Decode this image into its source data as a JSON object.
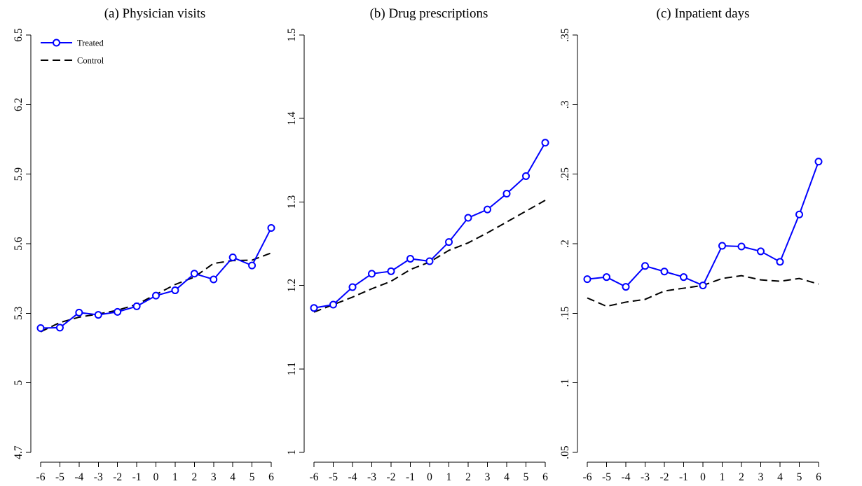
{
  "chart_data": [
    {
      "type": "line",
      "title": "(a) Physician visits",
      "xlabel": "",
      "ylabel": "",
      "x": [
        -6,
        -5,
        -4,
        -3,
        -2,
        -1,
        0,
        1,
        2,
        3,
        4,
        5,
        6
      ],
      "ylim": [
        4.7,
        6.5
      ],
      "yticks": [
        4.7,
        5,
        5.3,
        5.6,
        5.9,
        6.2,
        6.5
      ],
      "ytick_labels": [
        "4.7",
        "5",
        "5.3",
        "5.6",
        "5.9",
        "6.2",
        "6.5"
      ],
      "legend": {
        "show": true,
        "position": "top-left"
      },
      "series": [
        {
          "name": "Treated",
          "style": "solid-circle",
          "color": "#0000FF",
          "values": [
            5.236,
            5.238,
            5.303,
            5.293,
            5.306,
            5.33,
            5.376,
            5.399,
            5.471,
            5.446,
            5.541,
            5.506,
            5.668
          ]
        },
        {
          "name": "Control",
          "style": "dashed",
          "color": "#000000",
          "values": [
            5.22,
            5.26,
            5.283,
            5.297,
            5.313,
            5.338,
            5.381,
            5.424,
            5.456,
            5.515,
            5.527,
            5.529,
            5.56
          ]
        }
      ]
    },
    {
      "type": "line",
      "title": "(b) Drug prescriptions",
      "xlabel": "",
      "ylabel": "",
      "x": [
        -6,
        -5,
        -4,
        -3,
        -2,
        -1,
        0,
        1,
        2,
        3,
        4,
        5,
        6
      ],
      "ylim": [
        1.0,
        1.5
      ],
      "yticks": [
        1.0,
        1.1,
        1.2,
        1.3,
        1.4,
        1.5
      ],
      "ytick_labels": [
        "1",
        "1.1",
        "1.2",
        "1.3",
        "1.4",
        "1.5"
      ],
      "legend": {
        "show": false
      },
      "series": [
        {
          "name": "Treated",
          "style": "solid-circle",
          "color": "#0000FF",
          "values": [
            1.173,
            1.177,
            1.198,
            1.214,
            1.217,
            1.232,
            1.229,
            1.252,
            1.281,
            1.291,
            1.31,
            1.331,
            1.371
          ]
        },
        {
          "name": "Control",
          "style": "dashed",
          "color": "#000000",
          "values": [
            1.168,
            1.177,
            1.186,
            1.196,
            1.205,
            1.219,
            1.228,
            1.242,
            1.251,
            1.263,
            1.276,
            1.289,
            1.302
          ]
        }
      ]
    },
    {
      "type": "line",
      "title": "(c) Inpatient days",
      "xlabel": "",
      "ylabel": "",
      "x": [
        -6,
        -5,
        -4,
        -3,
        -2,
        -1,
        0,
        1,
        2,
        3,
        4,
        5,
        6
      ],
      "ylim": [
        0.05,
        0.35
      ],
      "yticks": [
        0.05,
        0.1,
        0.15,
        0.2,
        0.25,
        0.3,
        0.35
      ],
      "ytick_labels": [
        ".05",
        ".1",
        ".15",
        ".2",
        ".25",
        ".3",
        ".35"
      ],
      "legend": {
        "show": false
      },
      "series": [
        {
          "name": "Treated",
          "style": "solid-circle",
          "color": "#0000FF",
          "values": [
            0.1745,
            0.176,
            0.169,
            0.184,
            0.18,
            0.176,
            0.17,
            0.1985,
            0.198,
            0.1945,
            0.187,
            0.221,
            0.259
          ]
        },
        {
          "name": "Control",
          "style": "dashed",
          "color": "#000000",
          "values": [
            0.161,
            0.155,
            0.158,
            0.16,
            0.166,
            0.168,
            0.17,
            0.175,
            0.177,
            0.174,
            0.173,
            0.175,
            0.171
          ]
        }
      ]
    }
  ]
}
